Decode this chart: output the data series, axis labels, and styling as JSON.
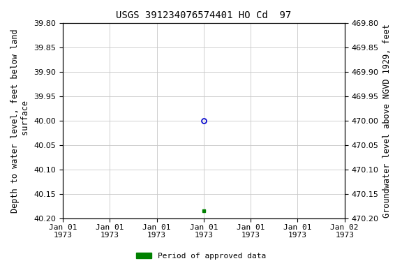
{
  "title": "USGS 391234076574401 HO Cd  97",
  "ylabel_left": "Depth to water level, feet below land\n surface",
  "ylabel_right": "Groundwater level above NGVD 1929, feet",
  "ylim_left": [
    39.8,
    40.2
  ],
  "ylim_right": [
    470.2,
    469.8
  ],
  "yticks_left": [
    39.8,
    39.85,
    39.9,
    39.95,
    40.0,
    40.05,
    40.1,
    40.15,
    40.2
  ],
  "yticks_right": [
    470.2,
    470.15,
    470.1,
    470.05,
    470.0,
    469.95,
    469.9,
    469.85,
    469.8
  ],
  "xlim": [
    0,
    6
  ],
  "xtick_positions": [
    0,
    1,
    2,
    3,
    4,
    5,
    6
  ],
  "xtick_labels": [
    "Jan 01\n1973",
    "Jan 01\n1973",
    "Jan 01\n1973",
    "Jan 01\n1973",
    "Jan 01\n1973",
    "Jan 01\n1973",
    "Jan 02\n1973"
  ],
  "data_open_circle": {
    "x": 3,
    "value": 40.0
  },
  "data_green_square": {
    "x": 3,
    "value": 40.185
  },
  "background_color": "#ffffff",
  "grid_color": "#c8c8c8",
  "open_circle_color": "#0000cc",
  "green_square_color": "#008000",
  "legend_label": "Period of approved data",
  "legend_color": "#008000",
  "title_fontsize": 10,
  "axis_label_fontsize": 8.5,
  "tick_fontsize": 8,
  "font_family": "DejaVu Sans Mono"
}
